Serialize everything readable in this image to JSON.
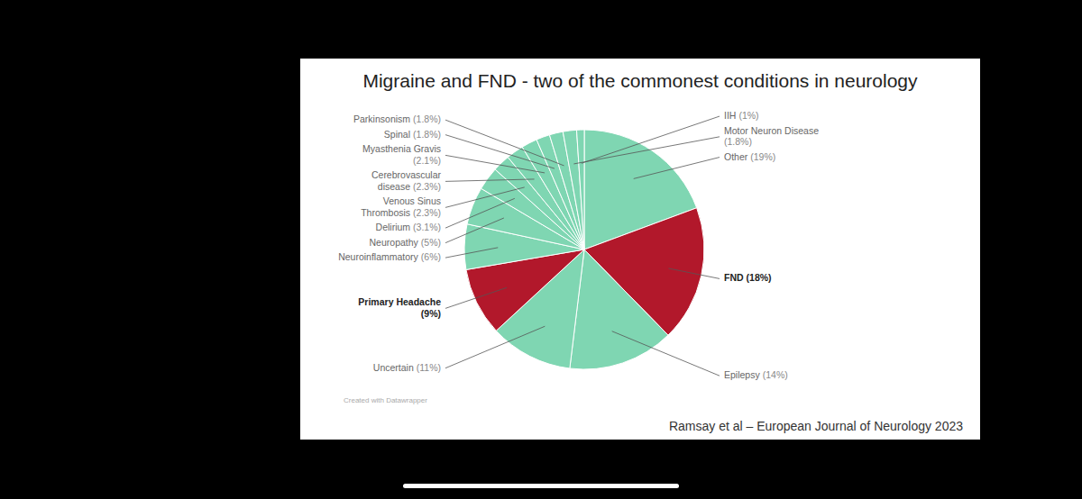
{
  "chart_data": {
    "type": "pie",
    "title": "Migraine and FND -  two of the commonest conditions in neurology",
    "categories": [
      "Other",
      "FND",
      "Epilepsy",
      "Uncertain",
      "Primary Headache",
      "Neuroinflammatory",
      "Neuropathy",
      "Delirium",
      "Venous Sinus Thrombosis",
      "Cerebrovascular disease",
      "Myasthenia Gravis",
      "Spinal",
      "Parkinsonism",
      "Motor Neuron Disease",
      "IIH"
    ],
    "values": [
      19,
      18,
      14,
      11,
      9,
      6,
      5,
      3.1,
      2.3,
      2.3,
      2.1,
      1.8,
      1.8,
      1.8,
      1
    ],
    "value_labels": [
      "(19%)",
      "(18%)",
      "(14%)",
      "(11%)",
      "(9%)",
      "(6%)",
      "(5%)",
      "(3.1%)",
      "(2.3%)",
      "(2.3%)",
      "(2.1%)",
      "(1.8%)",
      "(1.8%)",
      "(1.8%)",
      "(1%)"
    ],
    "colors": [
      "#7fd6b2",
      "#b2182b",
      "#7fd6b2",
      "#7fd6b2",
      "#b2182b",
      "#7fd6b2",
      "#7fd6b2",
      "#7fd6b2",
      "#7fd6b2",
      "#7fd6b2",
      "#7fd6b2",
      "#7fd6b2",
      "#7fd6b2",
      "#7fd6b2",
      "#7fd6b2"
    ],
    "data_labels": true,
    "credit": "Created with Datawrapper",
    "source": "Ramsay et al – European Journal of Neurology 2023"
  }
}
